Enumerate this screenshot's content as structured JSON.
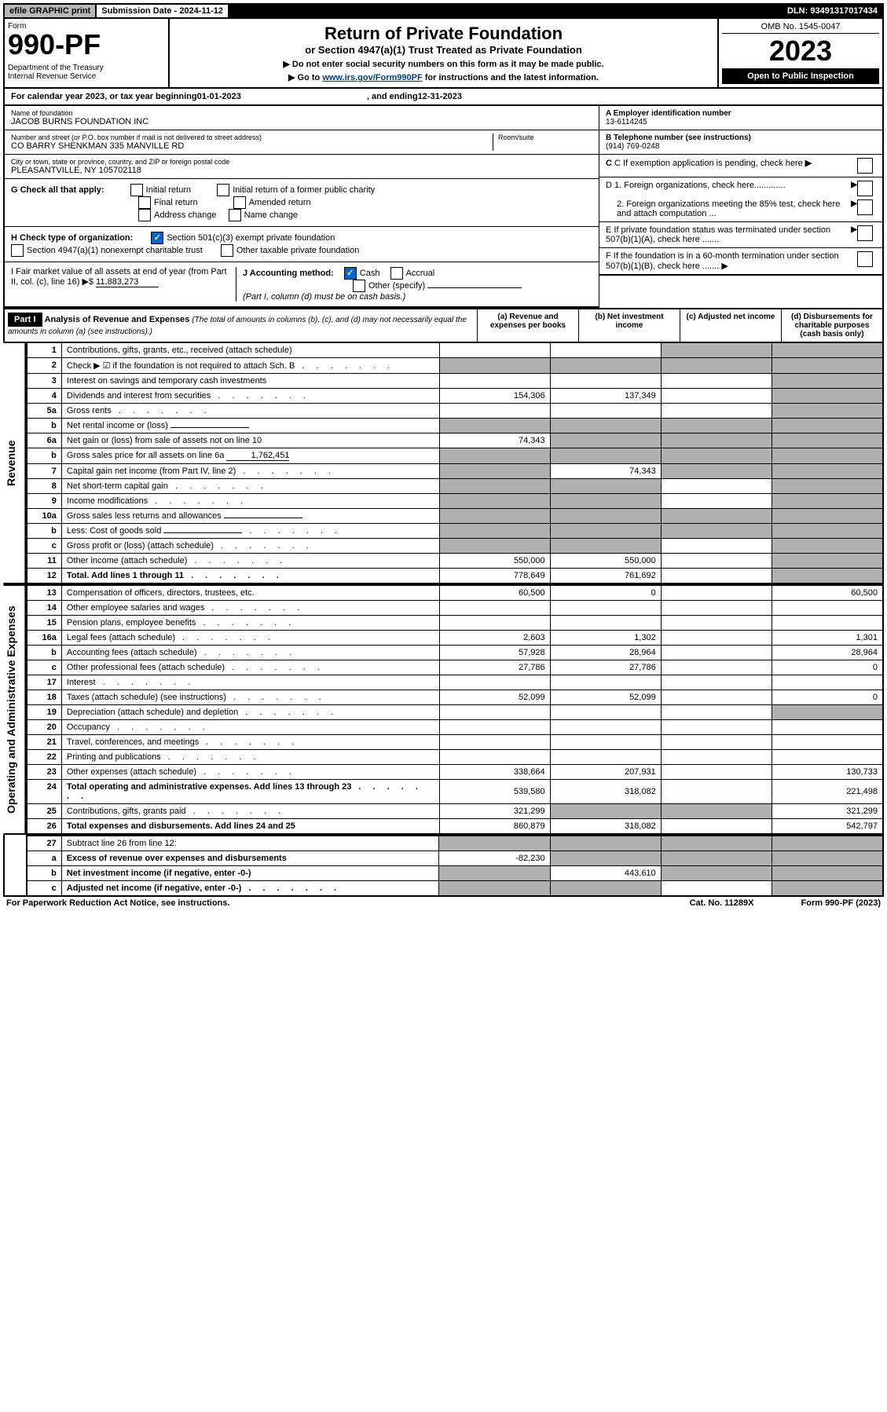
{
  "top": {
    "efile": "efile GRAPHIC print",
    "submission": "Submission Date - 2024-11-12",
    "dln": "DLN: 93491317017434"
  },
  "header": {
    "form_label": "Form",
    "form_number": "990-PF",
    "dept": "Department of the Treasury",
    "irs": "Internal Revenue Service",
    "title": "Return of Private Foundation",
    "subtitle": "or Section 4947(a)(1) Trust Treated as Private Foundation",
    "instr1": "▶ Do not enter social security numbers on this form as it may be made public.",
    "instr2_prefix": "▶ Go to ",
    "instr2_link": "www.irs.gov/Form990PF",
    "instr2_suffix": " for instructions and the latest information.",
    "omb": "OMB No. 1545-0047",
    "year": "2023",
    "open": "Open to Public Inspection"
  },
  "calendar": {
    "prefix": "For calendar year 2023, or tax year beginning ",
    "begin": "01-01-2023",
    "mid": ", and ending ",
    "end": "12-31-2023"
  },
  "foundation": {
    "name_label": "Name of foundation",
    "name": "JACOB BURNS FOUNDATION INC",
    "addr_label": "Number and street (or P.O. box number if mail is not delivered to street address)",
    "addr": "CO BARRY SHENKMAN 335 MANVILLE RD",
    "room_label": "Room/suite",
    "city_label": "City or town, state or province, country, and ZIP or foreign postal code",
    "city": "PLEASANTVILLE, NY  105702118"
  },
  "right_info": {
    "a_label": "A Employer identification number",
    "a_value": "13-6114245",
    "b_label": "B Telephone number (see instructions)",
    "b_value": "(914) 769-0248",
    "c_label": "C If exemption application is pending, check here",
    "d1": "D 1. Foreign organizations, check here.............",
    "d2": "2. Foreign organizations meeting the 85% test, check here and attach computation ...",
    "e": "E  If private foundation status was terminated under section 507(b)(1)(A), check here .......",
    "f": "F  If the foundation is in a 60-month termination under section 507(b)(1)(B), check here .......  ▶"
  },
  "g": {
    "label": "G Check all that apply:",
    "initial": "Initial return",
    "final": "Final return",
    "address": "Address change",
    "initial_former": "Initial return of a former public charity",
    "amended": "Amended return",
    "name": "Name change"
  },
  "h": {
    "label": "H Check type of organization:",
    "501c3": "Section 501(c)(3) exempt private foundation",
    "4947": "Section 4947(a)(1) nonexempt charitable trust",
    "other": "Other taxable private foundation"
  },
  "i": {
    "label": "I Fair market value of all assets at end of year (from Part II, col. (c), line 16) ▶$ ",
    "value": "11,883,273"
  },
  "j": {
    "label": "J Accounting method:",
    "cash": "Cash",
    "accrual": "Accrual",
    "other": "Other (specify)",
    "note": "(Part I, column (d) must be on cash basis.)"
  },
  "part1": {
    "label": "Part I",
    "title": "Analysis of Revenue and Expenses",
    "title_note": "(The total of amounts in columns (b), (c), and (d) may not necessarily equal the amounts in column (a) (see instructions).)",
    "col_a": "(a)  Revenue and expenses per books",
    "col_b": "(b)  Net investment income",
    "col_c": "(c)  Adjusted net income",
    "col_d": "(d)  Disbursements for charitable purposes (cash basis only)"
  },
  "sides": {
    "revenue": "Revenue",
    "expenses": "Operating and Administrative Expenses"
  },
  "rows": [
    {
      "n": "1",
      "desc": "Contributions, gifts, grants, etc., received (attach schedule)",
      "a": "",
      "b": "",
      "c": "shade",
      "d": "shade"
    },
    {
      "n": "2",
      "desc": "Check ▶ ☑ if the foundation is not required to attach Sch. B",
      "a": "shade",
      "b": "shade",
      "c": "shade",
      "d": "shade",
      "dots": true
    },
    {
      "n": "3",
      "desc": "Interest on savings and temporary cash investments",
      "a": "",
      "b": "",
      "c": "",
      "d": "shade"
    },
    {
      "n": "4",
      "desc": "Dividends and interest from securities",
      "a": "154,306",
      "b": "137,349",
      "c": "",
      "d": "shade",
      "dots": true
    },
    {
      "n": "5a",
      "desc": "Gross rents",
      "a": "",
      "b": "",
      "c": "",
      "d": "shade",
      "dots": true
    },
    {
      "n": "b",
      "desc": "Net rental income or (loss)",
      "a": "shade",
      "b": "shade",
      "c": "shade",
      "d": "shade",
      "inline": true
    },
    {
      "n": "6a",
      "desc": "Net gain or (loss) from sale of assets not on line 10",
      "a": "74,343",
      "b": "shade",
      "c": "shade",
      "d": "shade"
    },
    {
      "n": "b",
      "desc": "Gross sales price for all assets on line 6a",
      "a": "shade",
      "b": "shade",
      "c": "shade",
      "d": "shade",
      "inline_val": "1,762,451"
    },
    {
      "n": "7",
      "desc": "Capital gain net income (from Part IV, line 2)",
      "a": "shade",
      "b": "74,343",
      "c": "shade",
      "d": "shade",
      "dots": true
    },
    {
      "n": "8",
      "desc": "Net short-term capital gain",
      "a": "shade",
      "b": "shade",
      "c": "",
      "d": "shade",
      "dots": true
    },
    {
      "n": "9",
      "desc": "Income modifications",
      "a": "shade",
      "b": "shade",
      "c": "",
      "d": "shade",
      "dots": true
    },
    {
      "n": "10a",
      "desc": "Gross sales less returns and allowances",
      "a": "shade",
      "b": "shade",
      "c": "shade",
      "d": "shade",
      "inline": true
    },
    {
      "n": "b",
      "desc": "Less: Cost of goods sold",
      "a": "shade",
      "b": "shade",
      "c": "shade",
      "d": "shade",
      "inline": true,
      "dots": true
    },
    {
      "n": "c",
      "desc": "Gross profit or (loss) (attach schedule)",
      "a": "shade",
      "b": "shade",
      "c": "",
      "d": "shade",
      "dots": true
    },
    {
      "n": "11",
      "desc": "Other income (attach schedule)",
      "a": "550,000",
      "b": "550,000",
      "c": "",
      "d": "shade",
      "dots": true
    },
    {
      "n": "12",
      "desc": "Total. Add lines 1 through 11",
      "a": "778,649",
      "b": "761,692",
      "c": "",
      "d": "shade",
      "bold": true,
      "dots": true
    }
  ],
  "exp_rows": [
    {
      "n": "13",
      "desc": "Compensation of officers, directors, trustees, etc.",
      "a": "60,500",
      "b": "0",
      "c": "",
      "d": "60,500"
    },
    {
      "n": "14",
      "desc": "Other employee salaries and wages",
      "a": "",
      "b": "",
      "c": "",
      "d": "",
      "dots": true
    },
    {
      "n": "15",
      "desc": "Pension plans, employee benefits",
      "a": "",
      "b": "",
      "c": "",
      "d": "",
      "dots": true
    },
    {
      "n": "16a",
      "desc": "Legal fees (attach schedule)",
      "a": "2,603",
      "b": "1,302",
      "c": "",
      "d": "1,301",
      "dots": true
    },
    {
      "n": "b",
      "desc": "Accounting fees (attach schedule)",
      "a": "57,928",
      "b": "28,964",
      "c": "",
      "d": "28,964",
      "dots": true
    },
    {
      "n": "c",
      "desc": "Other professional fees (attach schedule)",
      "a": "27,786",
      "b": "27,786",
      "c": "",
      "d": "0",
      "dots": true
    },
    {
      "n": "17",
      "desc": "Interest",
      "a": "",
      "b": "",
      "c": "",
      "d": "",
      "dots": true
    },
    {
      "n": "18",
      "desc": "Taxes (attach schedule) (see instructions)",
      "a": "52,099",
      "b": "52,099",
      "c": "",
      "d": "0",
      "dots": true
    },
    {
      "n": "19",
      "desc": "Depreciation (attach schedule) and depletion",
      "a": "",
      "b": "",
      "c": "",
      "d": "shade",
      "dots": true
    },
    {
      "n": "20",
      "desc": "Occupancy",
      "a": "",
      "b": "",
      "c": "",
      "d": "",
      "dots": true
    },
    {
      "n": "21",
      "desc": "Travel, conferences, and meetings",
      "a": "",
      "b": "",
      "c": "",
      "d": "",
      "dots": true
    },
    {
      "n": "22",
      "desc": "Printing and publications",
      "a": "",
      "b": "",
      "c": "",
      "d": "",
      "dots": true
    },
    {
      "n": "23",
      "desc": "Other expenses (attach schedule)",
      "a": "338,664",
      "b": "207,931",
      "c": "",
      "d": "130,733",
      "dots": true
    },
    {
      "n": "24",
      "desc": "Total operating and administrative expenses. Add lines 13 through 23",
      "a": "539,580",
      "b": "318,082",
      "c": "",
      "d": "221,498",
      "bold": true,
      "dots": true
    },
    {
      "n": "25",
      "desc": "Contributions, gifts, grants paid",
      "a": "321,299",
      "b": "shade",
      "c": "shade",
      "d": "321,299",
      "dots": true
    },
    {
      "n": "26",
      "desc": "Total expenses and disbursements. Add lines 24 and 25",
      "a": "860,879",
      "b": "318,082",
      "c": "",
      "d": "542,797",
      "bold": true
    }
  ],
  "bottom_rows": [
    {
      "n": "27",
      "desc": "Subtract line 26 from line 12:",
      "a": "shade",
      "b": "shade",
      "c": "shade",
      "d": "shade"
    },
    {
      "n": "a",
      "desc": "Excess of revenue over expenses and disbursements",
      "a": "-82,230",
      "b": "shade",
      "c": "shade",
      "d": "shade",
      "bold": true
    },
    {
      "n": "b",
      "desc": "Net investment income (if negative, enter -0-)",
      "a": "shade",
      "b": "443,610",
      "c": "shade",
      "d": "shade",
      "bold": true
    },
    {
      "n": "c",
      "desc": "Adjusted net income (if negative, enter -0-)",
      "a": "shade",
      "b": "shade",
      "c": "",
      "d": "shade",
      "bold": true,
      "dots": true
    }
  ],
  "footer": {
    "left": "For Paperwork Reduction Act Notice, see instructions.",
    "mid": "Cat. No. 11289X",
    "right": "Form 990-PF (2023)"
  }
}
